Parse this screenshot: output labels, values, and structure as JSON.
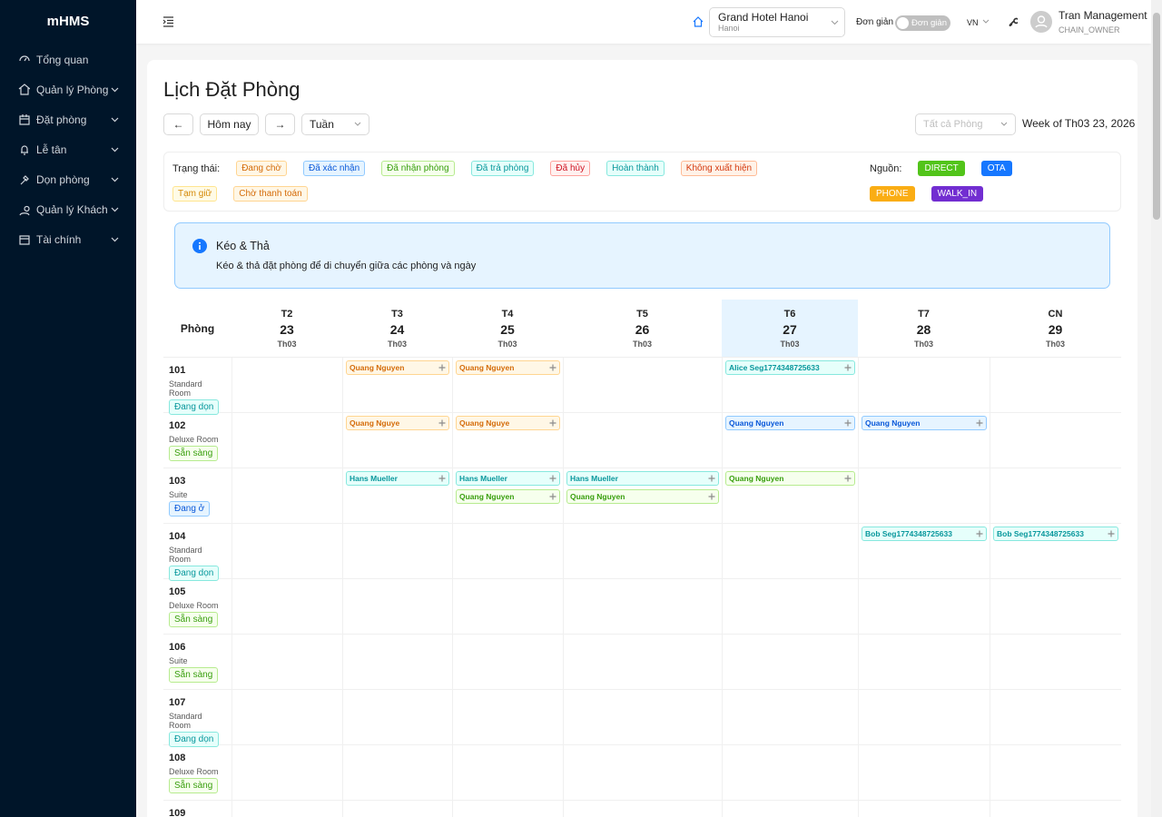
{
  "sidebar": {
    "brand": "mHMS",
    "menu": [
      {
        "label": "Tổng quan",
        "submenu": false
      },
      {
        "label": "Quản lý Phòng",
        "submenu": true
      },
      {
        "label": "Đặt phòng",
        "submenu": true
      },
      {
        "label": "Lễ tân",
        "submenu": true
      },
      {
        "label": "Dọn phòng",
        "submenu": true
      },
      {
        "label": "Quản lý Khách ...",
        "submenu": true
      },
      {
        "label": "Tài chính",
        "submenu": true
      }
    ]
  },
  "header": {
    "hotel_name": "Grand Hotel Hanoi",
    "hotel_city": "Hanoi",
    "mode_label": "Đơn giản",
    "mode_switch": "Đơn giản",
    "language": "VN",
    "user_name": "Tran Management",
    "user_role": "CHAIN_OWNER"
  },
  "page": {
    "title": "Lịch Đặt Phòng",
    "prev": "←",
    "today": "Hôm nay",
    "next": "→",
    "view": "Tuần",
    "room_filter": "Tất cả Phòng",
    "week_label": "Week of Th03 23, 2026"
  },
  "legend": {
    "status_label": "Trạng thái:",
    "statuses": [
      {
        "label": "Đang chờ",
        "tone": "orange"
      },
      {
        "label": "Đã xác nhận",
        "tone": "blue"
      },
      {
        "label": "Đã nhận phòng",
        "tone": "green"
      },
      {
        "label": "Đã trả phòng",
        "tone": "cyan"
      },
      {
        "label": "Đã hủy",
        "tone": "red"
      },
      {
        "label": "Hoàn thành",
        "tone": "cyan"
      },
      {
        "label": "Không xuất hiện",
        "tone": "volcano"
      },
      {
        "label": "Tạm giữ",
        "tone": "gold"
      },
      {
        "label": "Chờ thanh toán",
        "tone": "orange"
      }
    ],
    "source_label": "Nguồn:",
    "sources": [
      {
        "label": "DIRECT",
        "color": "#52c41a"
      },
      {
        "label": "OTA",
        "color": "#1677ff"
      },
      {
        "label": "PHONE",
        "color": "#faad14"
      },
      {
        "label": "WALK_IN",
        "color": "#722ed1"
      }
    ]
  },
  "alert": {
    "title": "Kéo & Thả",
    "message": "Kéo & thả đặt phòng để di chuyển giữa các phòng và ngày"
  },
  "calendar": {
    "room_header": "Phòng",
    "days": [
      {
        "weekday": "T2",
        "day": "23",
        "month": "Th03",
        "today": false
      },
      {
        "weekday": "T3",
        "day": "24",
        "month": "Th03",
        "today": false
      },
      {
        "weekday": "T4",
        "day": "25",
        "month": "Th03",
        "today": false
      },
      {
        "weekday": "T5",
        "day": "26",
        "month": "Th03",
        "today": false
      },
      {
        "weekday": "T6",
        "day": "27",
        "month": "Th03",
        "today": true
      },
      {
        "weekday": "T7",
        "day": "28",
        "month": "Th03",
        "today": false
      },
      {
        "weekday": "CN",
        "day": "29",
        "month": "Th03",
        "today": false
      }
    ],
    "rooms": [
      {
        "number": "101",
        "type": "Standard Room",
        "status": "Đang dọn",
        "tone": "cyan",
        "cells": [
          [],
          [
            {
              "guest": "Quang Nguyen",
              "tone": "orange"
            }
          ],
          [
            {
              "guest": "Quang Nguyen",
              "tone": "orange"
            }
          ],
          [],
          [
            {
              "guest": "Alice Seg1774348725633",
              "tone": "cyan"
            }
          ],
          [],
          []
        ]
      },
      {
        "number": "102",
        "type": "Deluxe Room",
        "status": "Sẵn sàng",
        "tone": "green",
        "cells": [
          [],
          [
            {
              "guest": "Quang Nguye",
              "tone": "orange"
            }
          ],
          [
            {
              "guest": "Quang Nguye",
              "tone": "orange"
            }
          ],
          [],
          [
            {
              "guest": "Quang Nguyen",
              "tone": "blue"
            }
          ],
          [
            {
              "guest": "Quang Nguyen",
              "tone": "blue"
            }
          ],
          []
        ]
      },
      {
        "number": "103",
        "type": "Suite",
        "status": "Đang ở",
        "tone": "blue",
        "cells": [
          [],
          [
            {
              "guest": "Hans Mueller",
              "tone": "cyan"
            }
          ],
          [
            {
              "guest": "Hans Mueller",
              "tone": "cyan"
            },
            {
              "guest": "Quang Nguyen",
              "tone": "green"
            }
          ],
          [
            {
              "guest": "Hans Mueller",
              "tone": "cyan"
            },
            {
              "guest": "Quang Nguyen",
              "tone": "green"
            }
          ],
          [
            {
              "guest": "Quang Nguyen",
              "tone": "green"
            }
          ],
          [],
          []
        ]
      },
      {
        "number": "104",
        "type": "Standard Room",
        "status": "Đang dọn",
        "tone": "cyan",
        "cells": [
          [],
          [],
          [],
          [],
          [],
          [
            {
              "guest": "Bob Seg1774348725633",
              "tone": "cyan"
            }
          ],
          [
            {
              "guest": "Bob Seg1774348725633",
              "tone": "cyan"
            }
          ]
        ]
      },
      {
        "number": "105",
        "type": "Deluxe Room",
        "status": "Sẵn sàng",
        "tone": "green",
        "cells": [
          [],
          [],
          [],
          [],
          [],
          [],
          []
        ]
      },
      {
        "number": "106",
        "type": "Suite",
        "status": "Sẵn sàng",
        "tone": "green",
        "cells": [
          [],
          [],
          [],
          [],
          [],
          [],
          []
        ]
      },
      {
        "number": "107",
        "type": "Standard Room",
        "status": "Đang dọn",
        "tone": "cyan",
        "cells": [
          [],
          [],
          [],
          [],
          [],
          [],
          []
        ]
      },
      {
        "number": "108",
        "type": "Deluxe Room",
        "status": "Sẵn sàng",
        "tone": "green",
        "cells": [
          [],
          [],
          [],
          [],
          [],
          [],
          []
        ]
      },
      {
        "number": "109",
        "cells": [
          [],
          [],
          [],
          [],
          [],
          [],
          []
        ]
      }
    ]
  }
}
